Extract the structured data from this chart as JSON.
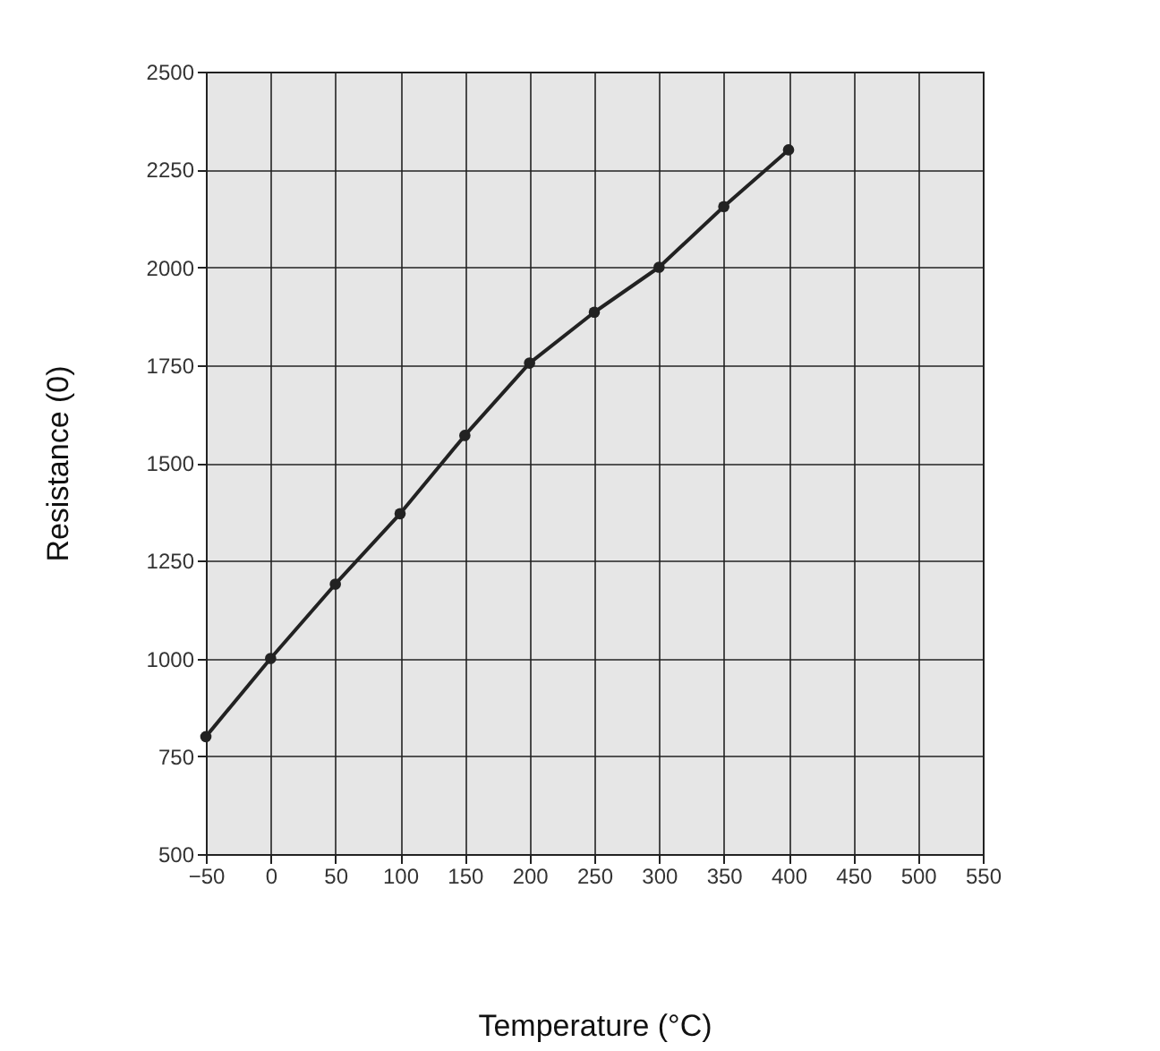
{
  "chart_data": {
    "type": "line",
    "xlabel": "Temperature (°C)",
    "ylabel": "Resistance (0)",
    "x": [
      -50,
      0,
      50,
      100,
      150,
      200,
      250,
      300,
      350,
      400
    ],
    "series": [
      {
        "color": "#222222",
        "values": [
          800,
          1000,
          1190,
          1370,
          1570,
          1755,
          1885,
          2000,
          2155,
          2300
        ]
      }
    ],
    "xlim": [
      -50,
      550
    ],
    "xticks": [
      -50,
      0,
      50,
      100,
      150,
      200,
      250,
      300,
      350,
      400,
      450,
      500,
      550
    ],
    "ylim": [
      500,
      2500
    ],
    "yticks": [
      500,
      750,
      1000,
      1250,
      1500,
      1750,
      2000,
      2250,
      2500
    ],
    "grid": true,
    "marker": "circle",
    "line_style": "solid"
  }
}
